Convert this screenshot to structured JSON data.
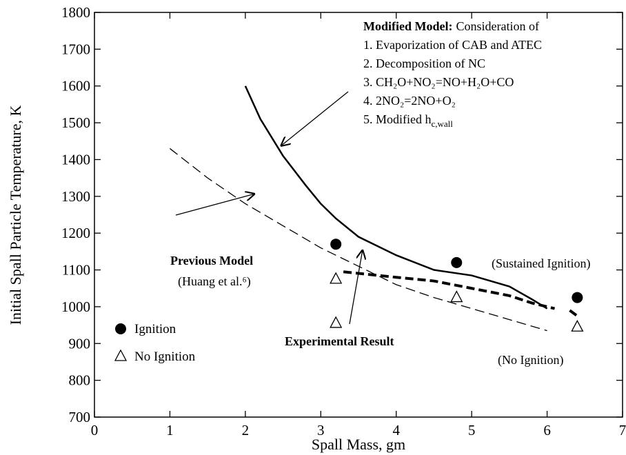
{
  "chart_data": {
    "type": "line",
    "xlabel": "Spall Mass, gm",
    "ylabel": "Initial Spall Particle Temperature, K",
    "xlim": [
      0,
      7
    ],
    "xticks": [
      0,
      1,
      2,
      3,
      4,
      5,
      6,
      7
    ],
    "ylim": [
      700,
      1800
    ],
    "yticks": [
      700,
      800,
      900,
      1000,
      1100,
      1200,
      1300,
      1400,
      1500,
      1600,
      1700,
      1800
    ],
    "grid": false,
    "series": [
      {
        "name": "Modified Model:",
        "color": "#000000",
        "dash": "solid",
        "width": 2.5,
        "x": [
          2.0,
          2.2,
          2.5,
          2.8,
          3.0,
          3.2,
          3.5,
          4.0,
          4.5,
          5.0,
          5.5,
          5.8,
          6.0
        ],
        "values": [
          1600,
          1510,
          1410,
          1330,
          1280,
          1240,
          1190,
          1140,
          1100,
          1085,
          1055,
          1020,
          995
        ]
      },
      {
        "name": "Previous Model",
        "color": "#000000",
        "dash": "dashed",
        "width": 1.3,
        "x": [
          1.0,
          1.5,
          2.0,
          2.5,
          3.0,
          3.5,
          4.0,
          4.5,
          5.0,
          5.5,
          6.0
        ],
        "values": [
          1430,
          1350,
          1280,
          1220,
          1160,
          1110,
          1060,
          1025,
          995,
          965,
          935
        ]
      },
      {
        "name": "Experimental Result",
        "color": "#000000",
        "dash": "thick-dashed",
        "width": 4,
        "x": [
          3.3,
          4.0,
          4.5,
          5.0,
          5.5,
          5.8,
          6.1,
          6.2,
          6.3,
          6.4
        ],
        "values": [
          1095,
          1080,
          1070,
          1050,
          1030,
          1010,
          995,
          null,
          990,
          975
        ]
      },
      {
        "name": "Ignition",
        "color": "#000000",
        "marker": "circle",
        "x": [
          3.2,
          4.8,
          6.4
        ],
        "values": [
          1170,
          1120,
          1025
        ]
      },
      {
        "name": "No Ignition",
        "color": "#000000",
        "marker": "triangle",
        "x": [
          3.2,
          3.2,
          4.8,
          6.4
        ],
        "values": [
          1075,
          955,
          1025,
          945
        ]
      }
    ],
    "legend": "lower left",
    "annotations": [
      "Consideration of",
      "1. Evaporization of CAB and ATEC",
      "2. Decomposition of NC",
      "3. CH₂O+NO₂=NO+H₂O+CO",
      "4. 2NO₂=2NO+O₂",
      "5. Modified h",
      "c,wall",
      "(Huang et al.⁶)",
      "(Sustained Ignition)",
      "(No Ignition)"
    ]
  }
}
